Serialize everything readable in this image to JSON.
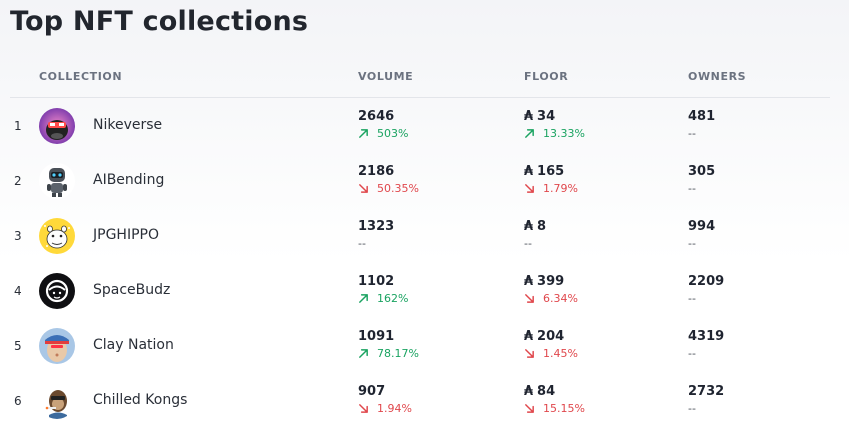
{
  "page_title": "Top NFT collections",
  "headers": {
    "collection": "COLLECTION",
    "volume": "VOLUME",
    "floor": "FLOOR",
    "owners": "OWNERS"
  },
  "currency_symbol": "₳",
  "colors": {
    "up": "#1aa361",
    "down": "#e0474c"
  },
  "rows": [
    {
      "rank": "1",
      "name": "Nikeverse",
      "avatar": "nikeverse-avatar",
      "volume": "2646",
      "volume_change": "503%",
      "volume_dir": "up",
      "floor": "34",
      "floor_change": "13.33%",
      "floor_dir": "up",
      "owners": "481",
      "owners_change": "--"
    },
    {
      "rank": "2",
      "name": "AIBending",
      "avatar": "aibending-avatar",
      "volume": "2186",
      "volume_change": "50.35%",
      "volume_dir": "down",
      "floor": "165",
      "floor_change": "1.79%",
      "floor_dir": "down",
      "owners": "305",
      "owners_change": "--"
    },
    {
      "rank": "3",
      "name": "JPGHIPPO",
      "avatar": "jpghippo-avatar",
      "volume": "1323",
      "volume_change": "--",
      "volume_dir": "none",
      "floor": "8",
      "floor_change": "--",
      "floor_dir": "none",
      "owners": "994",
      "owners_change": "--"
    },
    {
      "rank": "4",
      "name": "SpaceBudz",
      "avatar": "spacebudz-avatar",
      "volume": "1102",
      "volume_change": "162%",
      "volume_dir": "up",
      "floor": "399",
      "floor_change": "6.34%",
      "floor_dir": "down",
      "owners": "2209",
      "owners_change": "--"
    },
    {
      "rank": "5",
      "name": "Clay Nation",
      "avatar": "claynation-avatar",
      "volume": "1091",
      "volume_change": "78.17%",
      "volume_dir": "up",
      "floor": "204",
      "floor_change": "1.45%",
      "floor_dir": "down",
      "owners": "4319",
      "owners_change": "--"
    },
    {
      "rank": "6",
      "name": "Chilled Kongs",
      "avatar": "chilledkongs-avatar",
      "volume": "907",
      "volume_change": "1.94%",
      "volume_dir": "down",
      "floor": "84",
      "floor_change": "15.15%",
      "floor_dir": "down",
      "owners": "2732",
      "owners_change": "--"
    }
  ]
}
